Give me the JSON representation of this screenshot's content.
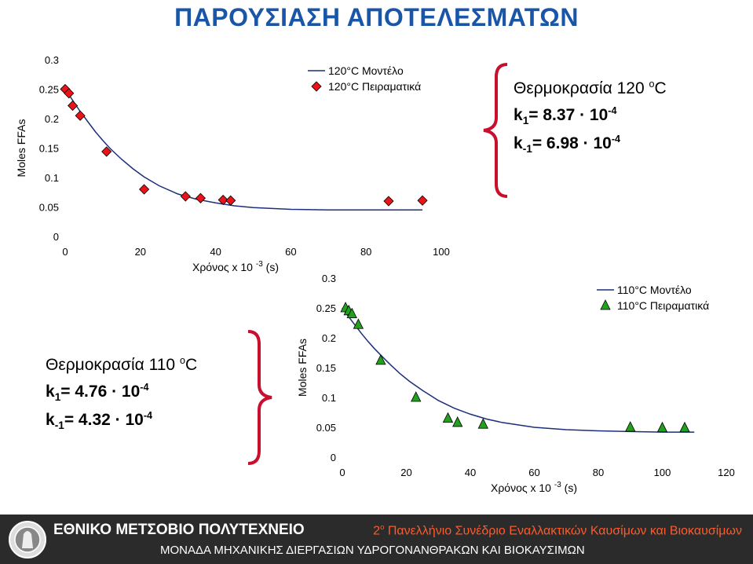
{
  "slide": {
    "title": "ΠΑΡΟΥΣΙΑΣΗ ΑΠΟΤΕΛΕΣΜΑΤΩΝ"
  },
  "chart_data": [
    {
      "type": "scatter",
      "title": "",
      "xlabel": "Χρόνος x 10",
      "xlabel_exp": "-3",
      "xlabel_unit": "(s)",
      "ylabel": "Moles FFAs",
      "xlim": [
        0,
        100
      ],
      "ylim": [
        0,
        0.3
      ],
      "xticks": [
        "0",
        "20",
        "40",
        "60",
        "80",
        "100"
      ],
      "yticks": [
        "0",
        "0.05",
        "0.1",
        "0.15",
        "0.2",
        "0.25",
        "0.3"
      ],
      "legend_position": "top-right",
      "series": [
        {
          "name": "120°C Μοντέλο",
          "kind": "line",
          "color": "#1b2f7a",
          "x": [
            0,
            2,
            4,
            6,
            8,
            10,
            12,
            15,
            18,
            21,
            25,
            30,
            35,
            40,
            45,
            50,
            60,
            70,
            80,
            90,
            95
          ],
          "y": [
            0.25,
            0.231,
            0.212,
            0.195,
            0.178,
            0.163,
            0.149,
            0.131,
            0.115,
            0.101,
            0.086,
            0.072,
            0.063,
            0.057,
            0.052,
            0.049,
            0.046,
            0.045,
            0.045,
            0.045,
            0.045
          ]
        },
        {
          "name": "120°C Πειραματικά",
          "kind": "marker",
          "marker": "diamond",
          "color": "#e8141a",
          "x": [
            0,
            1,
            2,
            4,
            11,
            21,
            32,
            36,
            42,
            44,
            86,
            95
          ],
          "y": [
            0.25,
            0.243,
            0.222,
            0.205,
            0.144,
            0.08,
            0.068,
            0.065,
            0.062,
            0.061,
            0.06,
            0.061
          ]
        }
      ]
    },
    {
      "type": "scatter",
      "title": "",
      "xlabel": "Χρόνος x 10",
      "xlabel_exp": "-3",
      "xlabel_unit": "(s)",
      "ylabel": "Moles FFAs",
      "xlim": [
        0,
        120
      ],
      "ylim": [
        0,
        0.3
      ],
      "xticks": [
        "0",
        "20",
        "40",
        "60",
        "80",
        "100",
        "120"
      ],
      "yticks": [
        "0",
        "0.05",
        "0.1",
        "0.15",
        "0.2",
        "0.25",
        "0.3"
      ],
      "legend_position": "top-right",
      "series": [
        {
          "name": "110°C Μοντέλο",
          "kind": "line",
          "color": "#1b2f7a",
          "x": [
            0,
            2,
            4,
            6,
            8,
            10,
            12,
            15,
            18,
            21,
            25,
            30,
            35,
            40,
            45,
            50,
            60,
            70,
            80,
            90,
            100,
            110
          ],
          "y": [
            0.25,
            0.235,
            0.221,
            0.207,
            0.194,
            0.182,
            0.171,
            0.155,
            0.14,
            0.127,
            0.112,
            0.095,
            0.082,
            0.072,
            0.064,
            0.058,
            0.05,
            0.046,
            0.044,
            0.043,
            0.042,
            0.042
          ]
        },
        {
          "name": "110°C Πειραματικά",
          "kind": "marker",
          "marker": "triangle",
          "color": "#22a11f",
          "x": [
            1,
            2,
            3,
            5,
            12,
            23,
            33,
            36,
            44,
            90,
            100,
            107
          ],
          "y": [
            0.25,
            0.245,
            0.24,
            0.222,
            0.162,
            0.1,
            0.065,
            0.058,
            0.055,
            0.05,
            0.049,
            0.049
          ]
        }
      ]
    }
  ],
  "panel_120": {
    "title": "Θερμοκρασία 120 ",
    "title_sup": "o",
    "title_unit": "C",
    "k1_label": "k",
    "k1_sub": "1",
    "k1_value": " = 8.37 · 10",
    "k1_exp": "-4",
    "km1_label": "k",
    "km1_sub": "-1",
    "km1_value": "= 6.98 · 10",
    "km1_exp": "-4",
    "brace_color": "#c8102e"
  },
  "panel_110": {
    "title": "Θερμοκρασία 110 ",
    "title_sup": "o",
    "title_unit": "C",
    "k1_label": "k",
    "k1_sub": "1",
    "k1_value": " = 4.76 · 10",
    "k1_exp": "-4",
    "km1_label": "k",
    "km1_sub": "-1",
    "km1_value": "= 4.32 · 10",
    "km1_exp": "-4",
    "brace_color": "#c8102e"
  },
  "footer": {
    "university": "ΕΘΝΙΚΟ ΜΕΤΣΟΒΙΟ ΠΟΛΥΤΕΧΝΕΙΟ",
    "conference_num": "2",
    "conference_sup": "ο",
    "conference_text": " Πανελλήνιο Συνέδριο Εναλλακτικών Καυσίμων και Βιοκαυσίμων",
    "department": "ΜΟΝΑΔΑ ΜΗΧΑΝΙΚΗΣ ΔΙΕΡΓΑΣΙΩΝ ΥΔΡΟΓΟΝΑΝΘΡΑΚΩΝ ΚΑΙ ΒΙΟΚΑΥΣΙΜΩΝ",
    "logo_icon": "university-seal-icon"
  }
}
